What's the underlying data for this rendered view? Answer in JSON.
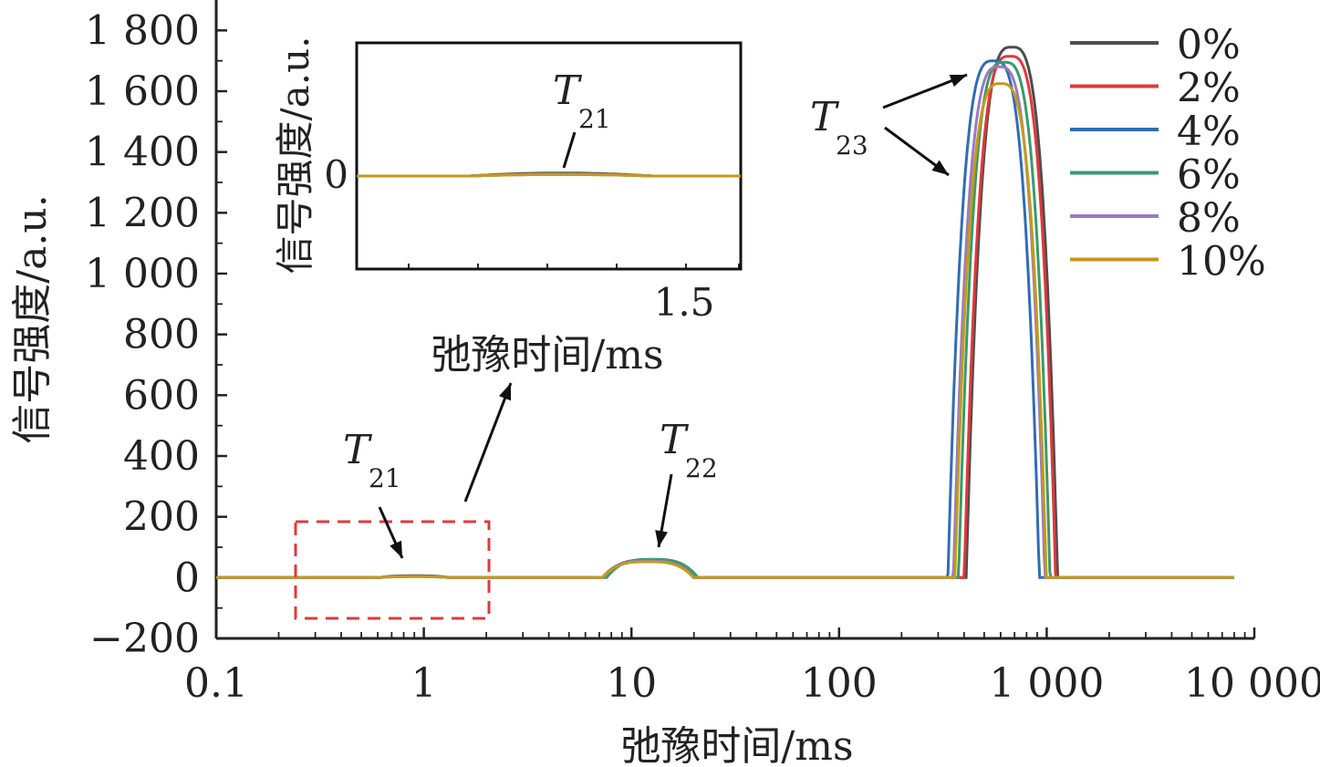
{
  "chart_data": {
    "type": "line",
    "xlabel": "弛豫时间/ms",
    "ylabel": "信号强度/a.u.",
    "xscale": "log",
    "xlim": [
      0.1,
      10000
    ],
    "ylim": [
      -200,
      1900
    ],
    "x_ticks": [
      {
        "value": 0.1,
        "label": "0.1"
      },
      {
        "value": 1,
        "label": "1"
      },
      {
        "value": 10,
        "label": "10"
      },
      {
        "value": 100,
        "label": "100"
      },
      {
        "value": 1000,
        "label": "1 000"
      },
      {
        "value": 10000,
        "label": "10 000"
      }
    ],
    "y_ticks": [
      {
        "value": -200,
        "label": "−200"
      },
      {
        "value": 0,
        "label": "0"
      },
      {
        "value": 200,
        "label": "200"
      },
      {
        "value": 400,
        "label": "400"
      },
      {
        "value": 600,
        "label": "600"
      },
      {
        "value": 800,
        "label": "800"
      },
      {
        "value": 1000,
        "label": "1 000"
      },
      {
        "value": 1200,
        "label": "1 200"
      },
      {
        "value": 1400,
        "label": "1 400"
      },
      {
        "value": 1600,
        "label": "1 600"
      },
      {
        "value": 1800,
        "label": "1 800"
      }
    ],
    "legend_position": "top-right",
    "series": [
      {
        "name": "0%",
        "color": "#4d4d4d",
        "t21": {
          "center": 0.9,
          "height": 6
        },
        "t22": {
          "center": 12.2,
          "height": 58
        },
        "t23": {
          "center": 680,
          "height": 1745
        }
      },
      {
        "name": "2%",
        "color": "#e0393c",
        "t21": {
          "center": 0.9,
          "height": 5
        },
        "t22": {
          "center": 12.2,
          "height": 56
        },
        "t23": {
          "center": 665,
          "height": 1715
        }
      },
      {
        "name": "4%",
        "color": "#2f6db5",
        "t21": {
          "center": 0.9,
          "height": 4
        },
        "t22": {
          "center": 12.0,
          "height": 55
        },
        "t23": {
          "center": 555,
          "height": 1700
        }
      },
      {
        "name": "6%",
        "color": "#3a9a6a",
        "t21": {
          "center": 0.9,
          "height": 4
        },
        "t22": {
          "center": 12.6,
          "height": 60
        },
        "t23": {
          "center": 625,
          "height": 1695
        }
      },
      {
        "name": "8%",
        "color": "#9b79c4",
        "t21": {
          "center": 0.9,
          "height": 3
        },
        "t22": {
          "center": 12.1,
          "height": 54
        },
        "t23": {
          "center": 590,
          "height": 1680
        }
      },
      {
        "name": "10%",
        "color": "#c49a1c",
        "t21": {
          "center": 0.9,
          "height": 3
        },
        "t22": {
          "center": 12.0,
          "height": 52
        },
        "t23": {
          "center": 600,
          "height": 1625
        }
      }
    ],
    "annotations": {
      "t21": {
        "main": "T",
        "sub": "21"
      },
      "t22": {
        "main": "T",
        "sub": "22"
      },
      "t23": {
        "main": "T",
        "sub": "23"
      }
    },
    "inset": {
      "xlabel": "弛豫时间/ms",
      "ylabel": "信号强度/a.u.",
      "x_tick_label": "1.5",
      "y_tick_label": "0",
      "annotation": {
        "main": "T",
        "sub": "21"
      }
    }
  }
}
